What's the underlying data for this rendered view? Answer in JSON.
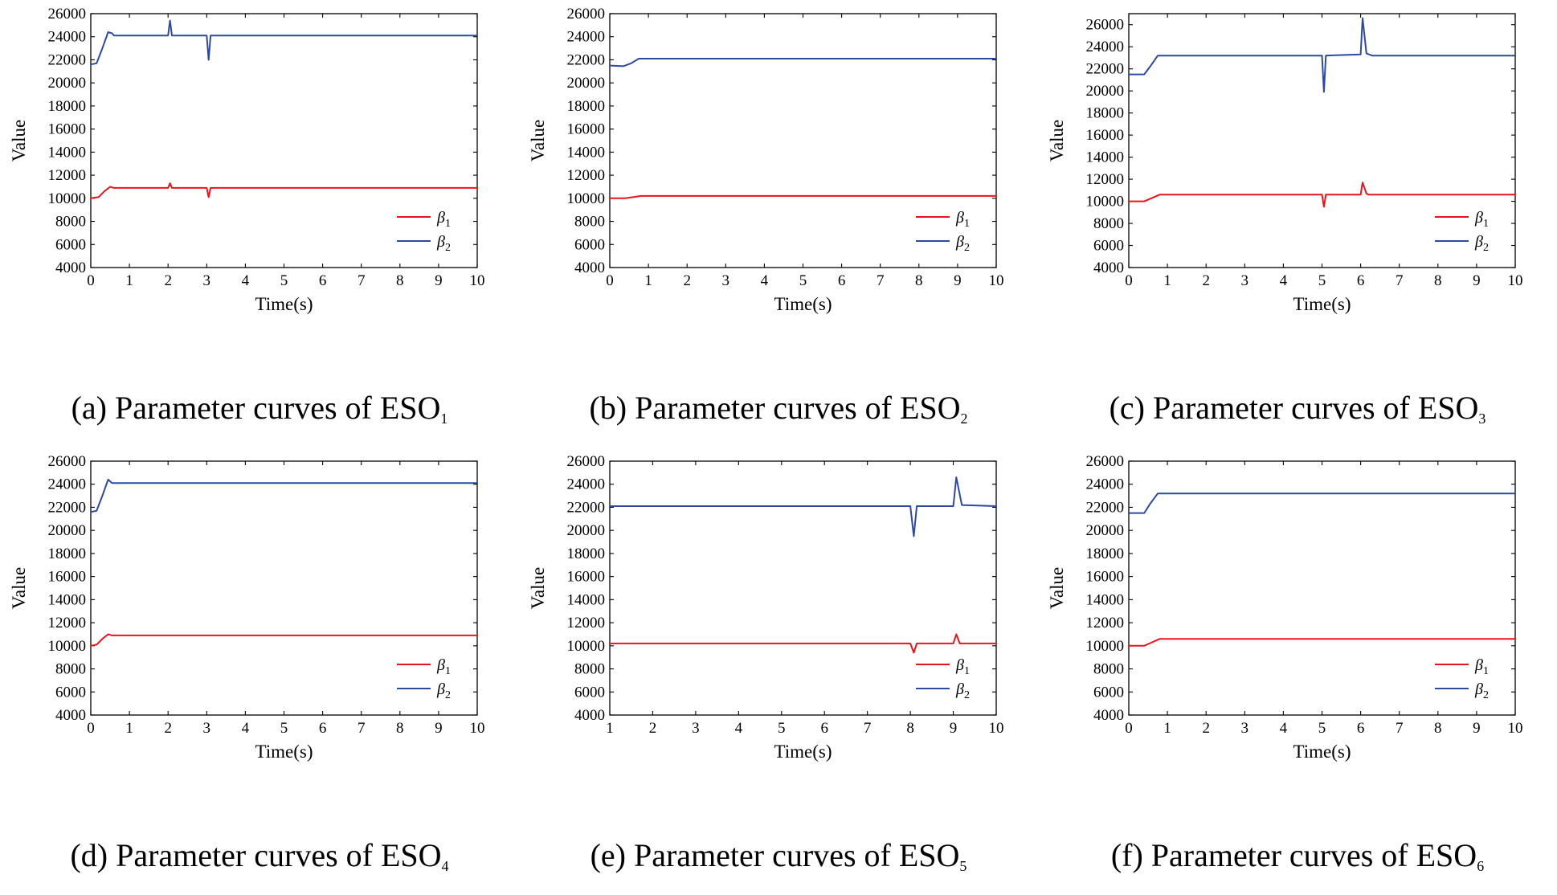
{
  "figure": {
    "colors": {
      "beta1": "#e8141c",
      "beta2": "#2e4a9e",
      "axis": "#000000"
    }
  },
  "chart_data": [
    {
      "type": "line",
      "caption": {
        "main": "(a) Parameter curves of ESO",
        "sub": "1"
      },
      "xlabel": "Time(s)",
      "ylabel": "Value",
      "xlim": [
        0,
        10
      ],
      "ylim": [
        4000,
        26000
      ],
      "xticks": [
        "0",
        "1",
        "2",
        "3",
        "4",
        "5",
        "6",
        "7",
        "8",
        "9",
        "10"
      ],
      "yticks": [
        "4000",
        "6000",
        "8000",
        "10000",
        "12000",
        "14000",
        "16000",
        "18000",
        "20000",
        "22000",
        "24000",
        "26000"
      ],
      "legend": [
        {
          "name": "β",
          "sub": "1"
        },
        {
          "name": "β",
          "sub": "2"
        }
      ],
      "series": [
        {
          "name": "β1",
          "points": [
            [
              0,
              10000
            ],
            [
              0.2,
              10100
            ],
            [
              0.35,
              10600
            ],
            [
              0.5,
              11000
            ],
            [
              0.6,
              10900
            ],
            [
              0.8,
              10900
            ],
            [
              2.0,
              10900
            ],
            [
              2.05,
              11300
            ],
            [
              2.1,
              10900
            ],
            [
              3.0,
              10900
            ],
            [
              3.05,
              10100
            ],
            [
              3.1,
              10900
            ],
            [
              10,
              10900
            ]
          ]
        },
        {
          "name": "β2",
          "points": [
            [
              0,
              21600
            ],
            [
              0.15,
              21700
            ],
            [
              0.3,
              23000
            ],
            [
              0.45,
              24400
            ],
            [
              0.55,
              24300
            ],
            [
              0.6,
              24100
            ],
            [
              2.0,
              24100
            ],
            [
              2.05,
              25400
            ],
            [
              2.1,
              24100
            ],
            [
              3.0,
              24100
            ],
            [
              3.05,
              22000
            ],
            [
              3.1,
              24100
            ],
            [
              10,
              24100
            ]
          ]
        }
      ]
    },
    {
      "type": "line",
      "caption": {
        "main": "(b) Parameter curves of ESO",
        "sub": "2"
      },
      "xlabel": "Time(s)",
      "ylabel": "Value",
      "xlim": [
        0,
        10
      ],
      "ylim": [
        4000,
        26000
      ],
      "xticks": [
        "0",
        "1",
        "2",
        "3",
        "4",
        "5",
        "6",
        "7",
        "8",
        "9",
        "10"
      ],
      "yticks": [
        "4000",
        "6000",
        "8000",
        "10000",
        "12000",
        "14000",
        "16000",
        "18000",
        "20000",
        "22000",
        "24000",
        "26000"
      ],
      "legend": [
        {
          "name": "β",
          "sub": "1"
        },
        {
          "name": "β",
          "sub": "2"
        }
      ],
      "series": [
        {
          "name": "β1",
          "points": [
            [
              0,
              10000
            ],
            [
              0.4,
              10000
            ],
            [
              0.6,
              10100
            ],
            [
              0.8,
              10200
            ],
            [
              10,
              10200
            ]
          ]
        },
        {
          "name": "β2",
          "points": [
            [
              0,
              21500
            ],
            [
              0.35,
              21450
            ],
            [
              0.55,
              21700
            ],
            [
              0.75,
              22100
            ],
            [
              10,
              22100
            ]
          ]
        }
      ]
    },
    {
      "type": "line",
      "caption": {
        "main": "(c) Parameter curves of ESO",
        "sub": "3"
      },
      "xlabel": "Time(s)",
      "ylabel": "Value",
      "xlim": [
        0,
        10
      ],
      "ylim": [
        4000,
        27000
      ],
      "xticks": [
        "0",
        "1",
        "2",
        "3",
        "4",
        "5",
        "6",
        "7",
        "8",
        "9",
        "10"
      ],
      "yticks": [
        "4000",
        "6000",
        "8000",
        "10000",
        "12000",
        "14000",
        "16000",
        "18000",
        "20000",
        "22000",
        "24000",
        "26000"
      ],
      "legend": [
        {
          "name": "β",
          "sub": "1"
        },
        {
          "name": "β",
          "sub": "2"
        }
      ],
      "series": [
        {
          "name": "β1",
          "points": [
            [
              0,
              10000
            ],
            [
              0.4,
              10000
            ],
            [
              0.6,
              10300
            ],
            [
              0.8,
              10600
            ],
            [
              5.0,
              10600
            ],
            [
              5.05,
              9500
            ],
            [
              5.1,
              10600
            ],
            [
              6.0,
              10600
            ],
            [
              6.05,
              11700
            ],
            [
              6.15,
              10700
            ],
            [
              6.2,
              10600
            ],
            [
              10,
              10600
            ]
          ]
        },
        {
          "name": "β2",
          "points": [
            [
              0,
              21500
            ],
            [
              0.4,
              21500
            ],
            [
              0.55,
              22200
            ],
            [
              0.75,
              23200
            ],
            [
              5.0,
              23200
            ],
            [
              5.05,
              19900
            ],
            [
              5.1,
              23200
            ],
            [
              6.0,
              23300
            ],
            [
              6.05,
              26600
            ],
            [
              6.15,
              23400
            ],
            [
              6.3,
              23200
            ],
            [
              10,
              23200
            ]
          ]
        }
      ]
    },
    {
      "type": "line",
      "caption": {
        "main": "(d) Parameter curves of ESO",
        "sub": "4"
      },
      "xlabel": "Time(s)",
      "ylabel": "Value",
      "xlim": [
        0,
        10
      ],
      "ylim": [
        4000,
        26000
      ],
      "xticks": [
        "0",
        "1",
        "2",
        "3",
        "4",
        "5",
        "6",
        "7",
        "8",
        "9",
        "10"
      ],
      "yticks": [
        "4000",
        "6000",
        "8000",
        "10000",
        "12000",
        "14000",
        "16000",
        "18000",
        "20000",
        "22000",
        "24000",
        "26000"
      ],
      "legend": [
        {
          "name": "β",
          "sub": "1"
        },
        {
          "name": "β",
          "sub": "2"
        }
      ],
      "series": [
        {
          "name": "β1",
          "points": [
            [
              0,
              10000
            ],
            [
              0.15,
              10100
            ],
            [
              0.3,
              10600
            ],
            [
              0.45,
              11000
            ],
            [
              0.55,
              10900
            ],
            [
              10,
              10900
            ]
          ]
        },
        {
          "name": "β2",
          "points": [
            [
              0,
              21600
            ],
            [
              0.15,
              21700
            ],
            [
              0.3,
              23000
            ],
            [
              0.45,
              24400
            ],
            [
              0.55,
              24100
            ],
            [
              10,
              24100
            ]
          ]
        }
      ]
    },
    {
      "type": "line",
      "caption": {
        "main": "(e) Parameter curves of ESO",
        "sub": "5"
      },
      "xlabel": "Time(s)",
      "ylabel": "Value",
      "xlim": [
        1,
        10
      ],
      "ylim": [
        4000,
        26000
      ],
      "xticks": [
        "1",
        "2",
        "3",
        "4",
        "5",
        "6",
        "7",
        "8",
        "9",
        "10"
      ],
      "yticks": [
        "4000",
        "6000",
        "8000",
        "10000",
        "12000",
        "14000",
        "16000",
        "18000",
        "20000",
        "22000",
        "24000",
        "26000"
      ],
      "legend": [
        {
          "name": "β",
          "sub": "1"
        },
        {
          "name": "β",
          "sub": "2"
        }
      ],
      "series": [
        {
          "name": "β1",
          "points": [
            [
              1,
              10200
            ],
            [
              8.0,
              10200
            ],
            [
              8.08,
              9400
            ],
            [
              8.15,
              10200
            ],
            [
              9.0,
              10200
            ],
            [
              9.07,
              11000
            ],
            [
              9.15,
              10200
            ],
            [
              10,
              10200
            ]
          ]
        },
        {
          "name": "β2",
          "points": [
            [
              1,
              22100
            ],
            [
              8.0,
              22100
            ],
            [
              8.08,
              19500
            ],
            [
              8.15,
              22100
            ],
            [
              9.0,
              22100
            ],
            [
              9.07,
              24600
            ],
            [
              9.2,
              22200
            ],
            [
              10,
              22100
            ]
          ]
        }
      ]
    },
    {
      "type": "line",
      "caption": {
        "main": "(f) Parameter curves of ESO",
        "sub": "6"
      },
      "xlabel": "Time(s)",
      "ylabel": "Value",
      "xlim": [
        0,
        10
      ],
      "ylim": [
        4000,
        26000
      ],
      "xticks": [
        "0",
        "1",
        "2",
        "3",
        "4",
        "5",
        "6",
        "7",
        "8",
        "9",
        "10"
      ],
      "yticks": [
        "4000",
        "6000",
        "8000",
        "10000",
        "12000",
        "14000",
        "16000",
        "18000",
        "20000",
        "22000",
        "24000",
        "26000"
      ],
      "legend": [
        {
          "name": "β",
          "sub": "1"
        },
        {
          "name": "β",
          "sub": "2"
        }
      ],
      "series": [
        {
          "name": "β1",
          "points": [
            [
              0,
              10000
            ],
            [
              0.4,
              10000
            ],
            [
              0.6,
              10300
            ],
            [
              0.8,
              10600
            ],
            [
              10,
              10600
            ]
          ]
        },
        {
          "name": "β2",
          "points": [
            [
              0,
              21500
            ],
            [
              0.4,
              21500
            ],
            [
              0.55,
              22300
            ],
            [
              0.75,
              23200
            ],
            [
              10,
              23200
            ]
          ]
        }
      ]
    }
  ]
}
